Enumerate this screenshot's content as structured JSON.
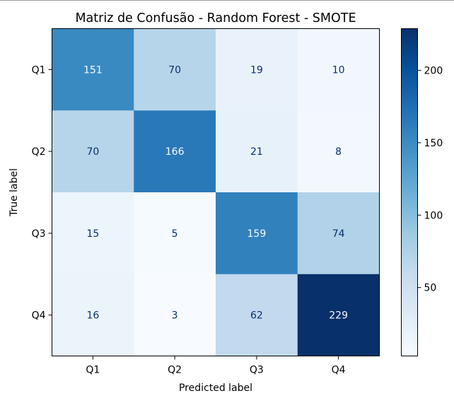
{
  "chart_data": {
    "type": "heatmap",
    "title": "Matriz de Confusão - Random Forest - SMOTE",
    "xlabel": "Predicted label",
    "ylabel": "True label",
    "x_categories": [
      "Q1",
      "Q2",
      "Q3",
      "Q4"
    ],
    "y_categories": [
      "Q1",
      "Q2",
      "Q3",
      "Q4"
    ],
    "matrix": [
      [
        151,
        70,
        19,
        10
      ],
      [
        70,
        166,
        21,
        8
      ],
      [
        15,
        5,
        159,
        74
      ],
      [
        16,
        3,
        62,
        229
      ]
    ],
    "colormap": "Blues",
    "colorbar": {
      "range": [
        3,
        229
      ],
      "ticks": [
        50,
        100,
        150,
        200
      ],
      "tick_labels": [
        "50",
        "100",
        "150",
        "200"
      ]
    },
    "text_colors": {
      "dark": "#08306b",
      "light": "#f7fbff"
    },
    "grid": false
  }
}
